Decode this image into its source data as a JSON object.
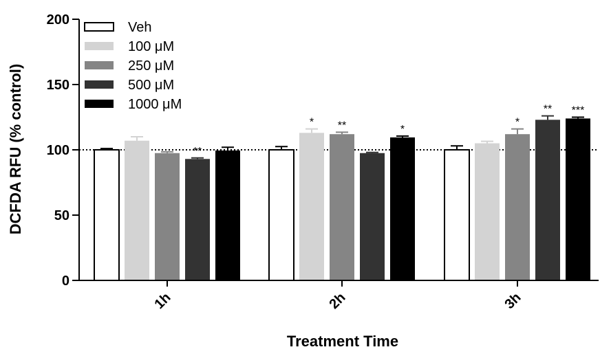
{
  "chart_data": {
    "type": "bar",
    "title": "",
    "xlabel": "Treatment Time",
    "ylabel": "DCFDA RFU (% control)",
    "ylim": [
      0,
      200
    ],
    "yticks": [
      0,
      50,
      100,
      150,
      200
    ],
    "reference_line": 100,
    "categories": [
      "1h",
      "2h",
      "3h"
    ],
    "legend_position": "top-left",
    "series": [
      {
        "name": "Veh",
        "color": "#ffffff",
        "values": [
          100,
          100,
          100
        ],
        "errors": [
          1,
          2.5,
          3
        ],
        "significance": [
          "",
          "",
          ""
        ]
      },
      {
        "name": "100 μM",
        "color": "#d3d3d3",
        "values": [
          107,
          113,
          105
        ],
        "errors": [
          3,
          3,
          1.5
        ],
        "significance": [
          "",
          "*",
          ""
        ]
      },
      {
        "name": "250 μM",
        "color": "#858585",
        "values": [
          97.5,
          112,
          112
        ],
        "errors": [
          1,
          1.5,
          4
        ],
        "significance": [
          "",
          "**",
          "*"
        ]
      },
      {
        "name": "500 μM",
        "color": "#333333",
        "values": [
          93,
          97.5,
          123
        ],
        "errors": [
          0.8,
          0.5,
          3
        ],
        "significance": [
          "**",
          "",
          "**"
        ]
      },
      {
        "name": "1000 μM",
        "color": "#000000",
        "values": [
          99.5,
          109.5,
          124
        ],
        "errors": [
          2.5,
          1,
          1
        ],
        "significance": [
          "",
          "*",
          "***"
        ]
      }
    ]
  }
}
